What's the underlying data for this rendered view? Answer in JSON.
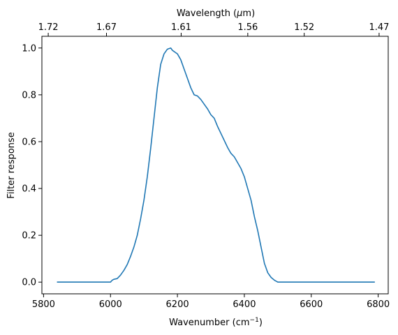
{
  "chart_data": {
    "type": "line",
    "title": "",
    "xlabel": "Wavenumber (cm",
    "xlabel_sup": "−1",
    "xlabel_suffix": ")",
    "ylabel": "Filter response",
    "top_xlabel": "Wavelength (",
    "top_xlabel_mu": "μ",
    "top_xlabel_suffix": "m)",
    "xlim": [
      5795,
      6830
    ],
    "ylim": [
      -0.05,
      1.05
    ],
    "grid": false,
    "legend": "none",
    "line_color": "#1f77b4",
    "x_ticks": [
      "5800",
      "6000",
      "6200",
      "6400",
      "6600",
      "6800"
    ],
    "y_ticks": [
      "0.0",
      "0.2",
      "0.4",
      "0.6",
      "0.8",
      "1.0"
    ],
    "top_ticks": [
      "1.72",
      "1.67",
      "1.61",
      "1.56",
      "1.52",
      "1.47"
    ],
    "series": [
      {
        "x": [
          5840,
          5900,
          5950,
          6000,
          6005,
          6010,
          6020,
          6030,
          6040,
          6050,
          6060,
          6070,
          6080,
          6090,
          6100,
          6110,
          6120,
          6130,
          6140,
          6150,
          6160,
          6170,
          6180,
          6185,
          6190,
          6195,
          6200,
          6210,
          6220,
          6230,
          6240,
          6250,
          6260,
          6270,
          6280,
          6290,
          6300,
          6310,
          6320,
          6330,
          6340,
          6350,
          6360,
          6370,
          6380,
          6390,
          6400,
          6410,
          6420,
          6430,
          6440,
          6450,
          6460,
          6470,
          6480,
          6490,
          6500,
          6510,
          6520,
          6530,
          6540,
          6550,
          6560,
          6570,
          6600,
          6700,
          6790
        ],
        "y": [
          0.0,
          0.0,
          0.0,
          0.0,
          0.008,
          0.012,
          0.015,
          0.03,
          0.05,
          0.075,
          0.11,
          0.15,
          0.2,
          0.27,
          0.35,
          0.45,
          0.57,
          0.7,
          0.83,
          0.93,
          0.975,
          0.995,
          1.0,
          0.99,
          0.985,
          0.98,
          0.975,
          0.95,
          0.91,
          0.87,
          0.83,
          0.8,
          0.795,
          0.78,
          0.76,
          0.74,
          0.715,
          0.7,
          0.665,
          0.635,
          0.605,
          0.575,
          0.55,
          0.535,
          0.51,
          0.485,
          0.45,
          0.4,
          0.35,
          0.28,
          0.22,
          0.15,
          0.08,
          0.04,
          0.02,
          0.008,
          0.0,
          0.0,
          0.0,
          0.0,
          0.0,
          0.0,
          0.0,
          0.0,
          0.0,
          0.0,
          0.0
        ]
      }
    ]
  }
}
